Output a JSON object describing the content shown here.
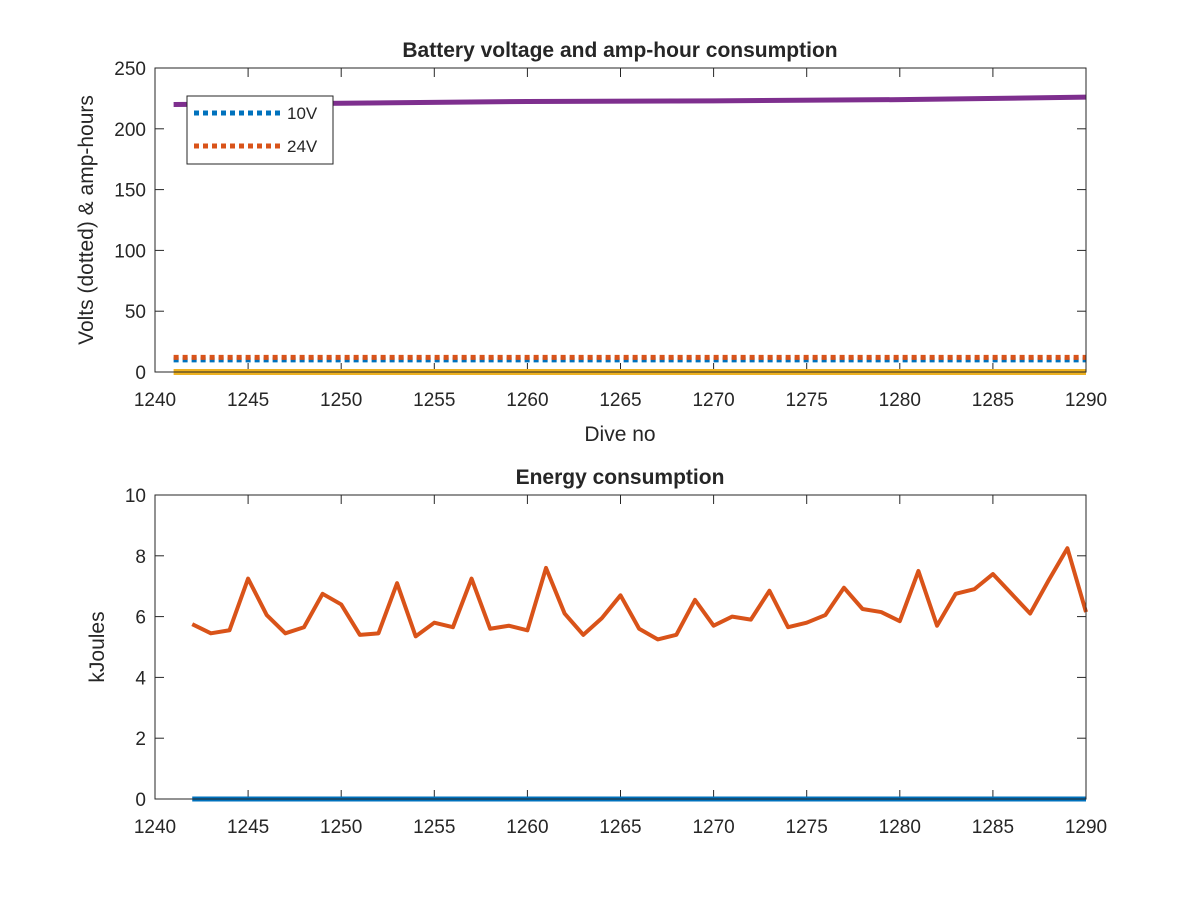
{
  "chart_data": [
    {
      "type": "line",
      "title": "Battery voltage and amp-hour consumption",
      "xlabel": "Dive no",
      "ylabel": "Volts (dotted) & amp-hours",
      "xlim": [
        1240,
        1290
      ],
      "ylim": [
        0,
        250
      ],
      "xticks": [
        1240,
        1245,
        1250,
        1255,
        1260,
        1265,
        1270,
        1275,
        1280,
        1285,
        1290
      ],
      "yticks": [
        0,
        50,
        100,
        150,
        200,
        250
      ],
      "grid": false,
      "legend_position": "top-left",
      "series": [
        {
          "name": "10V",
          "style": "dotted",
          "color": "#0072BD",
          "x": [
            1241,
            1290
          ],
          "y": [
            10,
            10
          ]
        },
        {
          "name": "24V",
          "style": "dotted",
          "color": "#D95319",
          "x": [
            1241,
            1290
          ],
          "y": [
            12,
            12
          ]
        },
        {
          "style": "solid",
          "color": "#EDB120",
          "x": [
            1241,
            1290
          ],
          "y": [
            0,
            0
          ]
        },
        {
          "style": "solid",
          "color": "#7E2F8E",
          "x": [
            1241,
            1250,
            1260,
            1270,
            1280,
            1290
          ],
          "y": [
            220,
            221,
            222.5,
            223,
            224,
            226
          ]
        }
      ]
    },
    {
      "type": "line",
      "title": "Energy consumption",
      "xlabel": "",
      "ylabel": "kJoules",
      "xlim": [
        1240,
        1290
      ],
      "ylim": [
        0,
        10
      ],
      "xticks": [
        1240,
        1245,
        1250,
        1255,
        1260,
        1265,
        1270,
        1275,
        1280,
        1285,
        1290
      ],
      "yticks": [
        0,
        2,
        4,
        6,
        8,
        10
      ],
      "grid": false,
      "series": [
        {
          "style": "solid",
          "color": "#0072BD",
          "x": [
            1242,
            1290
          ],
          "y": [
            0,
            0
          ]
        },
        {
          "style": "solid",
          "color": "#D95319",
          "x": [
            1242,
            1243,
            1244,
            1245,
            1246,
            1247,
            1248,
            1249,
            1250,
            1251,
            1252,
            1253,
            1254,
            1255,
            1256,
            1257,
            1258,
            1259,
            1260,
            1261,
            1262,
            1263,
            1264,
            1265,
            1266,
            1267,
            1268,
            1269,
            1270,
            1271,
            1272,
            1273,
            1274,
            1275,
            1276,
            1277,
            1278,
            1279,
            1280,
            1281,
            1282,
            1283,
            1284,
            1285,
            1286,
            1287,
            1288,
            1289,
            1290
          ],
          "y": [
            5.75,
            5.45,
            5.55,
            7.25,
            6.05,
            5.45,
            5.65,
            6.75,
            6.4,
            5.4,
            5.45,
            7.1,
            5.35,
            5.8,
            5.65,
            7.25,
            5.6,
            5.7,
            5.55,
            7.6,
            6.1,
            5.4,
            5.95,
            6.7,
            5.6,
            5.25,
            5.4,
            6.55,
            5.7,
            6.0,
            5.9,
            6.85,
            5.65,
            5.8,
            6.05,
            6.95,
            6.25,
            6.15,
            5.85,
            7.5,
            5.7,
            6.75,
            6.9,
            7.4,
            6.75,
            6.1,
            7.2,
            8.25,
            6.15
          ]
        }
      ]
    }
  ]
}
